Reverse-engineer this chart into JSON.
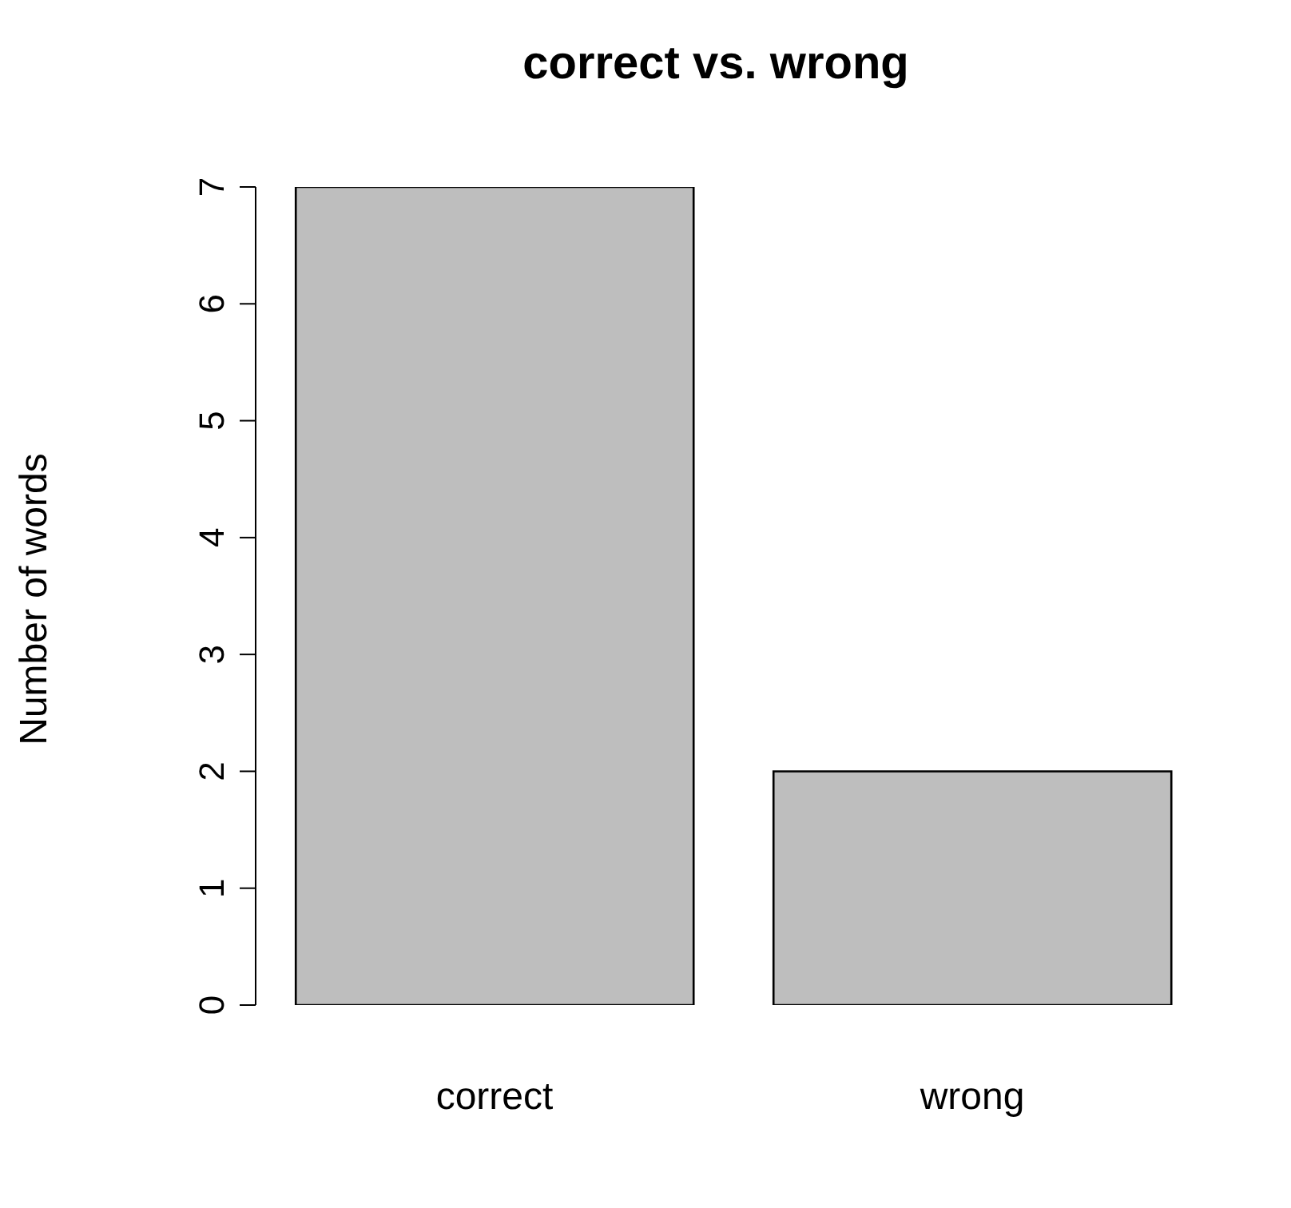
{
  "chart_data": {
    "type": "bar",
    "title": "correct vs. wrong",
    "ylabel": "Number of words",
    "categories": [
      "correct",
      "wrong"
    ],
    "values": [
      7,
      2
    ],
    "color": "#bebebe",
    "ylim": [
      0,
      7
    ],
    "yticks": [
      0,
      1,
      2,
      3,
      4,
      5,
      6,
      7
    ],
    "grid": false
  }
}
